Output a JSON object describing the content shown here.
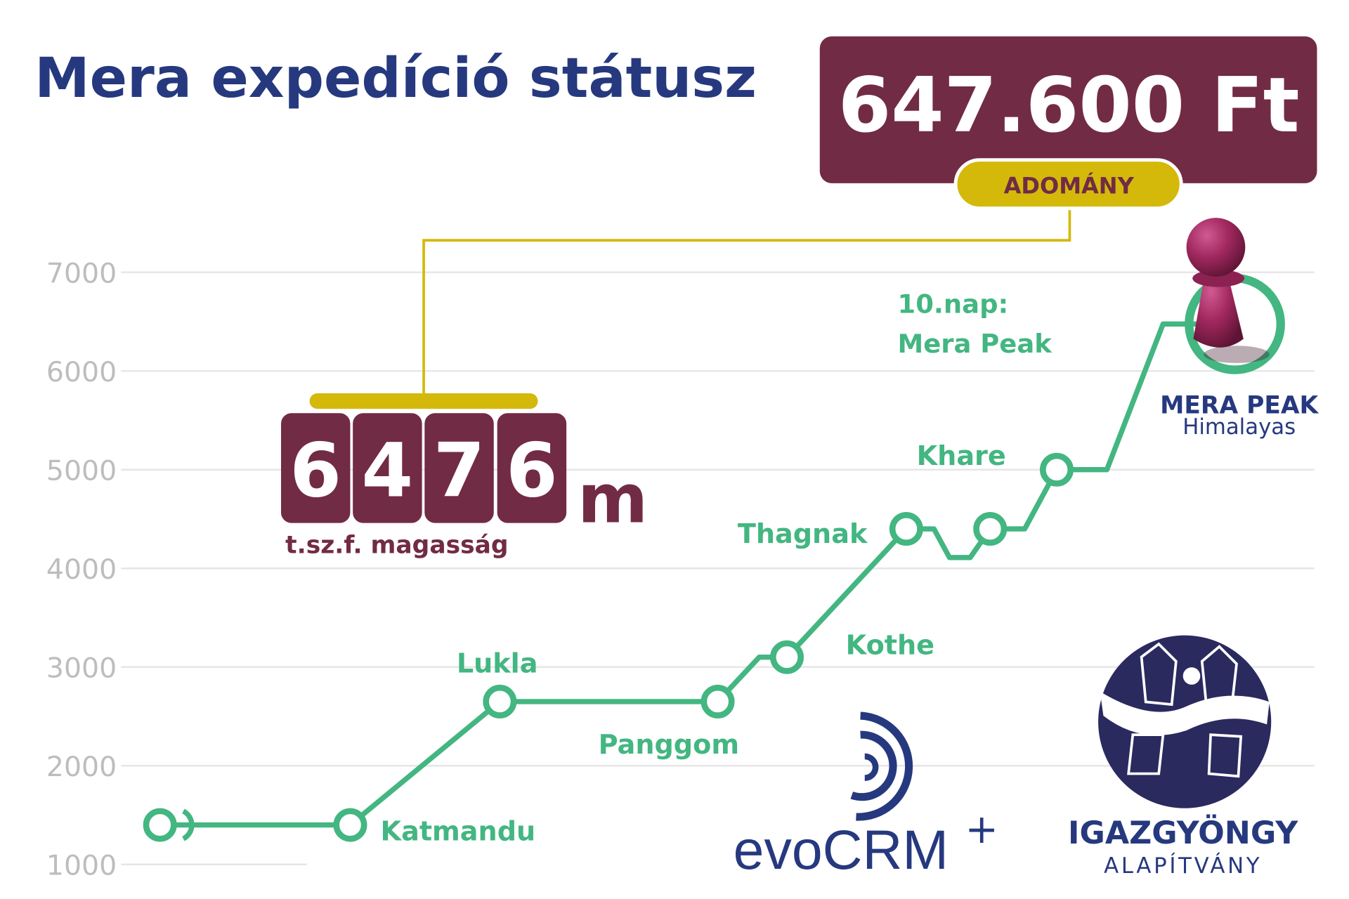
{
  "header": {
    "title": "Mera expedíció státusz"
  },
  "donation": {
    "amount": "647.600 Ft",
    "label": "ADOMÁNY"
  },
  "altitude": {
    "digits": [
      "6",
      "4",
      "7",
      "6"
    ],
    "unit": "m",
    "caption": "t.sz.f. magasság"
  },
  "chart_data": {
    "type": "line",
    "categories": [
      null,
      "Katmandu",
      "Lukla",
      "Panggom",
      null,
      "Kothe",
      "Thagnak",
      null,
      null,
      null,
      null,
      null,
      "Khare",
      null,
      null,
      "MERA PEAK"
    ],
    "values": [
      1400,
      1400,
      2650,
      2650,
      3100,
      3100,
      4400,
      4400,
      4110,
      4110,
      4400,
      4400,
      5000,
      5000,
      6476,
      6476
    ],
    "color": "#43b681",
    "ylim": [
      1000,
      7000
    ],
    "yticks": [
      1000,
      2000,
      3000,
      4000,
      5000,
      6000,
      7000
    ],
    "grid": true,
    "annotation": [
      "10.nap:",
      "Mera Peak"
    ],
    "peak_region": "Himalayas"
  },
  "logos": {
    "evo": "evoCRM",
    "evo_plus": "+",
    "foundation": "IGAZGYÖNGY",
    "foundation_sub": "ALAPÍTVÁNY"
  }
}
